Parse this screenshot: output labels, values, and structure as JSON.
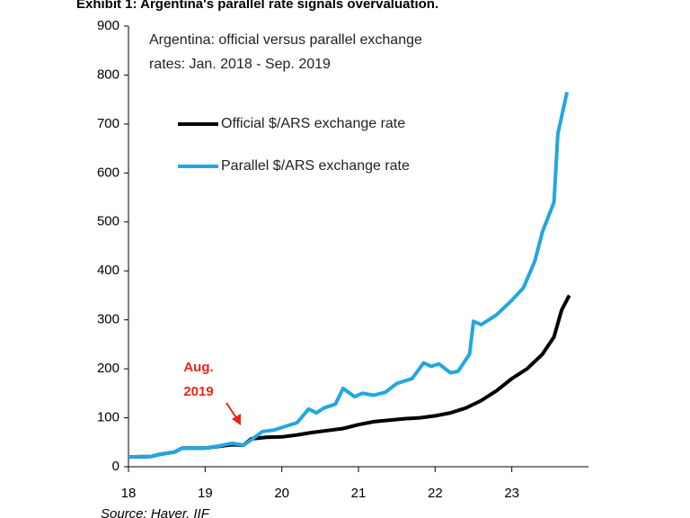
{
  "chart_data": {
    "type": "line",
    "title": "Exhibit 1: Argentina's parallel rate signals overvaluation.",
    "subtitle": [
      "Argentina: official versus parallel exchange",
      "rates: Jan. 2018 - Sep. 2019"
    ],
    "annotation": [
      "Aug.",
      "2019"
    ],
    "source": "Source: Haver, IIF",
    "xlim": [
      18,
      24
    ],
    "xticks": [
      18,
      19,
      20,
      21,
      22,
      23
    ],
    "ylim": [
      0,
      900
    ],
    "yticks": [
      0,
      100,
      200,
      300,
      400,
      500,
      600,
      700,
      800,
      900
    ],
    "grid": false,
    "series": [
      {
        "name": "Official $/ARS exchange rate",
        "color": "#000000",
        "x": [
          18.0,
          18.3,
          18.4,
          18.6,
          18.7,
          19.0,
          19.2,
          19.35,
          19.5,
          19.6,
          19.8,
          20.0,
          20.2,
          20.4,
          20.6,
          20.8,
          21.0,
          21.2,
          21.4,
          21.6,
          21.8,
          22.0,
          22.2,
          22.4,
          22.6,
          22.8,
          23.0,
          23.2,
          23.4,
          23.55,
          23.65,
          23.75
        ],
        "values": [
          20,
          21,
          25,
          30,
          38,
          38,
          42,
          45,
          44,
          57,
          60,
          61,
          65,
          70,
          74,
          78,
          86,
          92,
          95,
          98,
          100,
          104,
          110,
          120,
          135,
          155,
          180,
          200,
          230,
          265,
          320,
          350
        ]
      },
      {
        "name": "Parallel $/ARS exchange rate",
        "color": "#22a7e0",
        "x": [
          18.0,
          18.3,
          18.4,
          18.6,
          18.7,
          19.0,
          19.2,
          19.35,
          19.5,
          19.6,
          19.75,
          19.9,
          20.0,
          20.2,
          20.35,
          20.45,
          20.55,
          20.7,
          20.8,
          20.95,
          21.05,
          21.2,
          21.35,
          21.5,
          21.7,
          21.85,
          21.95,
          22.05,
          22.2,
          22.3,
          22.45,
          22.5,
          22.6,
          22.8,
          23.0,
          23.15,
          23.3,
          23.4,
          23.55,
          23.6,
          23.72
        ],
        "values": [
          20,
          21,
          25,
          30,
          38,
          38,
          43,
          48,
          44,
          55,
          72,
          75,
          80,
          90,
          118,
          110,
          120,
          128,
          160,
          143,
          150,
          146,
          152,
          170,
          180,
          212,
          205,
          210,
          192,
          195,
          230,
          297,
          290,
          310,
          340,
          365,
          420,
          480,
          540,
          680,
          765
        ]
      }
    ]
  }
}
